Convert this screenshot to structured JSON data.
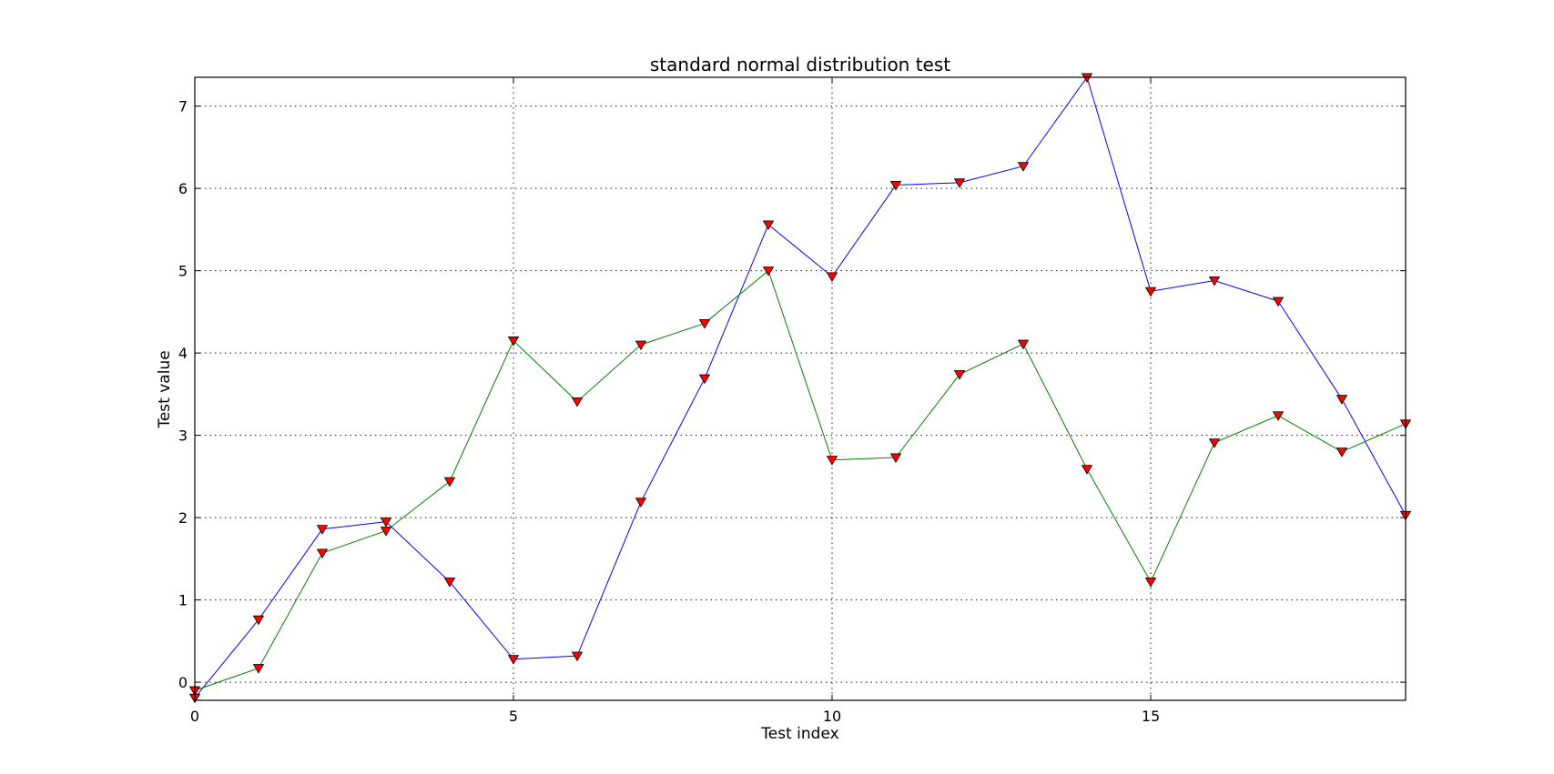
{
  "chart_data": {
    "type": "line",
    "title": "standard normal distribution test",
    "xlabel": "Test index",
    "ylabel": "Test value",
    "xlim": [
      0,
      19
    ],
    "ylim": [
      -0.22,
      7.35
    ],
    "xticks": [
      0,
      5,
      10,
      15
    ],
    "yticks": [
      0,
      1,
      2,
      3,
      4,
      5,
      6,
      7
    ],
    "grid": true,
    "marker": "triangle-down",
    "marker_color": "#ff0000",
    "x": [
      0,
      1,
      2,
      3,
      4,
      5,
      6,
      7,
      8,
      9,
      10,
      11,
      12,
      13,
      14,
      15,
      16,
      17,
      18,
      19
    ],
    "series": [
      {
        "color": "#0000ff",
        "values": [
          -0.19,
          0.76,
          1.86,
          1.95,
          1.22,
          0.28,
          0.32,
          2.19,
          3.69,
          5.56,
          4.93,
          6.04,
          6.07,
          6.27,
          7.35,
          4.75,
          4.88,
          4.63,
          3.44,
          2.03
        ]
      },
      {
        "color": "#008000",
        "values": [
          -0.1,
          0.17,
          1.57,
          1.84,
          2.44,
          4.15,
          3.41,
          4.1,
          4.36,
          5.0,
          2.7,
          2.73,
          3.74,
          4.11,
          2.59,
          1.22,
          2.91,
          3.24,
          2.8,
          3.14
        ]
      }
    ]
  }
}
